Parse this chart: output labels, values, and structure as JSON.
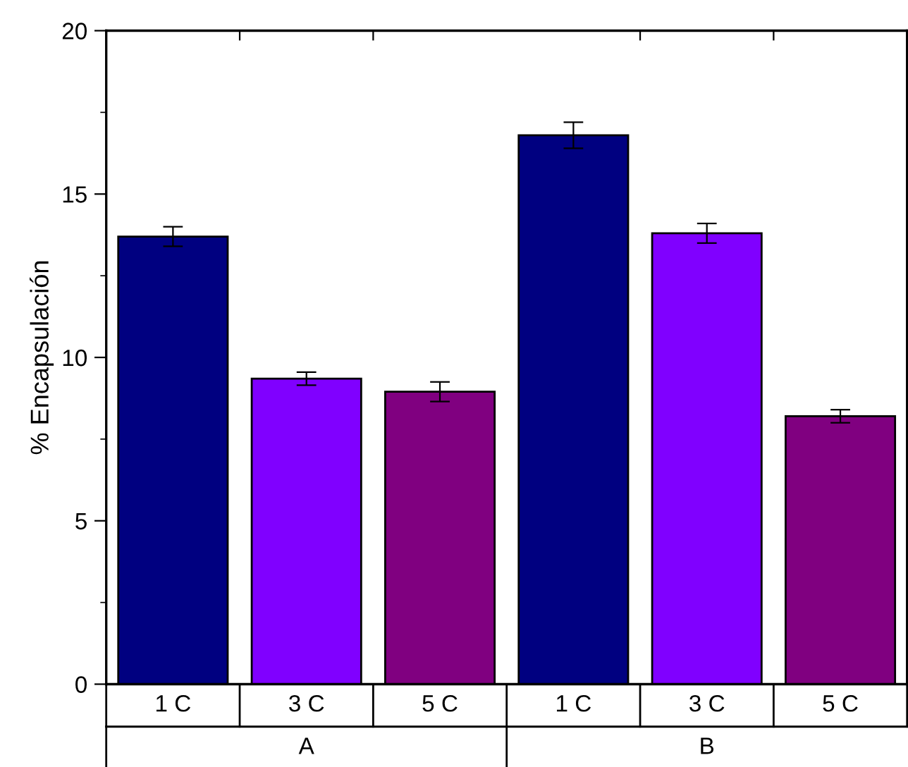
{
  "chart_data": {
    "type": "bar",
    "ylabel": "% Encapsulación",
    "categories": [
      "1 C",
      "3 C",
      "5 C",
      "1 C",
      "3 C",
      "5 C"
    ],
    "values": [
      13.7,
      9.35,
      8.95,
      16.8,
      13.8,
      8.2
    ],
    "errors": [
      0.3,
      0.2,
      0.3,
      0.4,
      0.3,
      0.2
    ],
    "colors": [
      "#000080",
      "#8000ff",
      "#800080",
      "#000080",
      "#8000ff",
      "#800080"
    ],
    "ylim": [
      0,
      20
    ],
    "yticks": [
      0,
      5,
      10,
      15,
      20
    ],
    "grid": false,
    "annotations": [
      "A",
      "B"
    ]
  }
}
